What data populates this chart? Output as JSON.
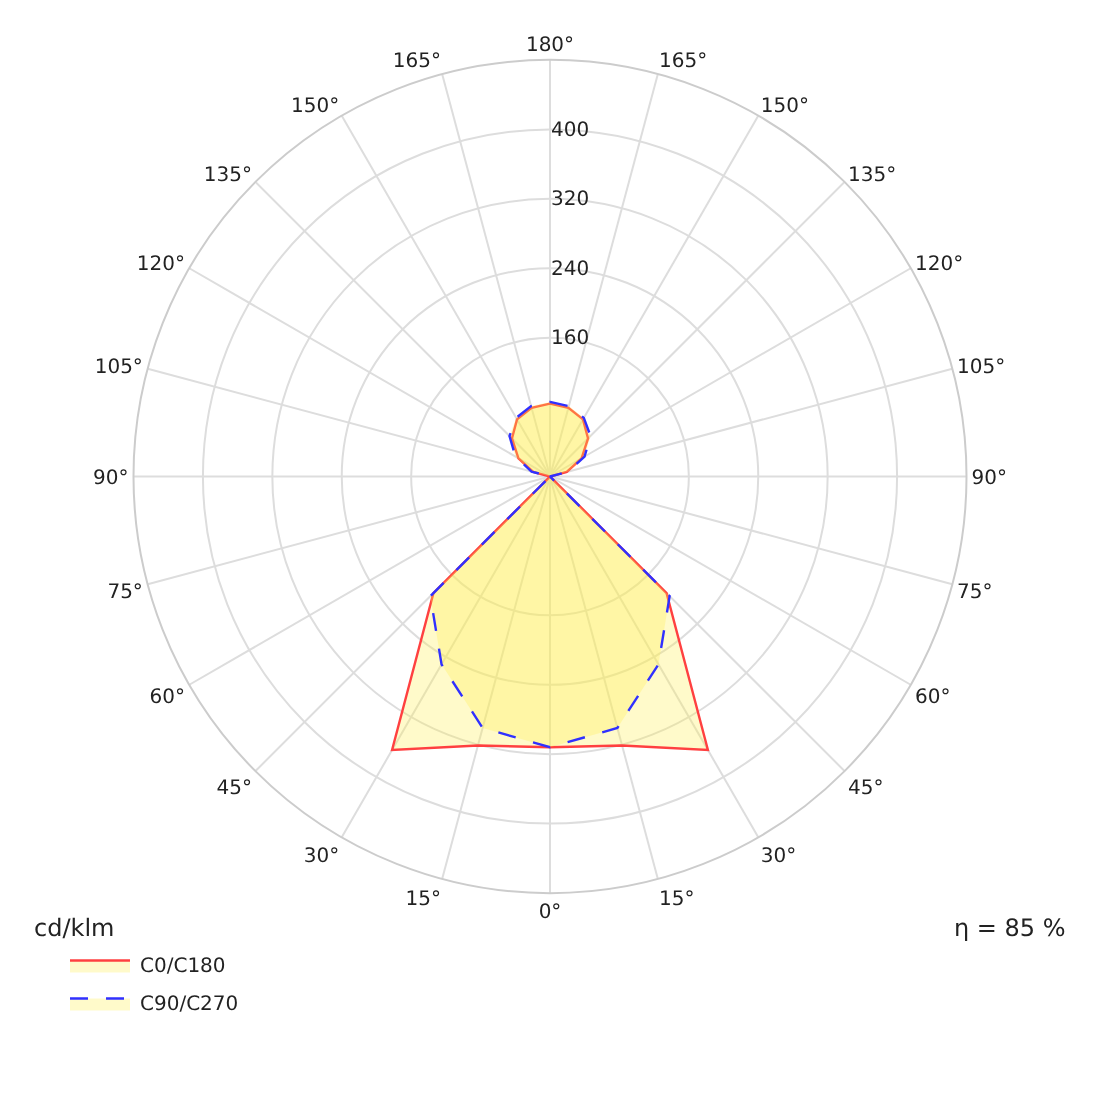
{
  "chart_data": {
    "type": "radar",
    "categories": [
      "180°",
      "165°",
      "150°",
      "135°",
      "120°",
      "105°",
      "90°",
      "75°",
      "60°",
      "45°",
      "30°",
      "15°",
      "0°",
      "15°",
      "30°",
      "45°",
      "60°",
      "75°",
      "90°",
      "105°",
      "120°",
      "135°",
      "150°",
      "165°"
    ],
    "series": [
      {
        "name": "C0/C180",
        "color": "#ff4040",
        "line_style": "solid",
        "values": [
          84,
          82,
          76,
          62,
          42,
          20,
          0,
          0,
          0,
          190,
          364,
          321,
          312,
          321,
          364,
          190,
          0,
          0,
          0,
          20,
          42,
          62,
          76,
          82
        ]
      },
      {
        "name": "C90/C270",
        "color": "#3030ff",
        "line_style": "dashed",
        "values": [
          86,
          84,
          78,
          66,
          46,
          22,
          0,
          0,
          0,
          195,
          250,
          300,
          312,
          300,
          250,
          195,
          0,
          0,
          0,
          22,
          46,
          66,
          78,
          84
        ]
      }
    ],
    "ylim": [
      0,
      480
    ],
    "yticks": [
      160,
      240,
      320,
      400
    ],
    "ylabel": "cd/klm",
    "annotations": [
      "η = 85 %"
    ],
    "grid": true,
    "legend": "bottom left",
    "marker": "none"
  }
}
